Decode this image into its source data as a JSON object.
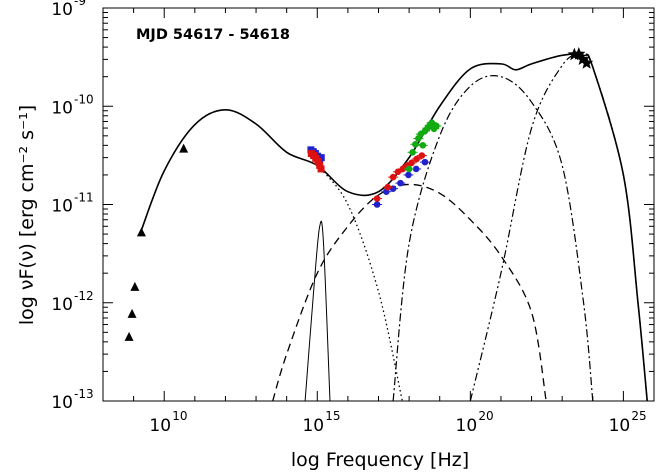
{
  "chart_data": {
    "type": "scatter",
    "annotation": "MJD 54617 - 54618",
    "xlabel": "log Frequency [Hz]",
    "ylabel": "log νF(ν) [erg cm⁻² s⁻¹]",
    "x_scale": "log",
    "y_scale": "log",
    "xlim": [
      100000000.0,
      1e+26
    ],
    "ylim": [
      1e-13,
      1e-09
    ],
    "x_tick_labels": [
      {
        "x": 10000000000.0,
        "base": "10",
        "exp": "10"
      },
      {
        "x": 1000000000000000.0,
        "base": "10",
        "exp": "15"
      },
      {
        "x": 1e+20,
        "base": "10",
        "exp": "20"
      },
      {
        "x": 1e+25,
        "base": "10",
        "exp": "25"
      }
    ],
    "y_tick_labels": [
      {
        "y": 1e-13,
        "base": "10",
        "exp": "-13"
      },
      {
        "y": 1e-12,
        "base": "10",
        "exp": "-12"
      },
      {
        "y": 1e-11,
        "base": "10",
        "exp": "-11"
      },
      {
        "y": 1e-10,
        "base": "10",
        "exp": "-10"
      },
      {
        "y": 1e-09,
        "base": "10",
        "exp": "-9"
      }
    ],
    "grid": false,
    "legend": "none",
    "series": [
      {
        "marker": "triangle",
        "color": "#000000",
        "points": [
          [
            710000000.0,
            4.5e-13
          ],
          [
            890000000.0,
            7.7e-13
          ],
          [
            1100000000.0,
            1.45e-12
          ],
          [
            1800000000.0,
            5.2e-12
          ],
          [
            43000000000.0,
            3.7e-11
          ]
        ]
      },
      {
        "marker": "star",
        "color": "#000000",
        "points": [
          [
            2.5e+23,
            3.35e-10
          ],
          [
            3.5e+23,
            3.4e-10
          ],
          [
            4.7e+23,
            3e-10
          ],
          [
            6.3e+23,
            2.75e-10
          ]
        ]
      },
      {
        "marker": "square",
        "color": "#2222cc",
        "points": [
          [
            620000000000000.0,
            3.6e-11
          ],
          [
            740000000000000.0,
            3.45e-11
          ],
          [
            870000000000000.0,
            3.3e-11
          ],
          [
            1020000000000000.0,
            3.1e-11
          ],
          [
            1200000000000000.0,
            2.9e-11
          ],
          [
            1350000000000000.0,
            3e-11
          ]
        ]
      },
      {
        "marker": "square",
        "color": "#dd1111",
        "points": [
          [
            640000000000000.0,
            3.3e-11
          ],
          [
            760000000000000.0,
            3.15e-11
          ],
          [
            890000000000000.0,
            2.95e-11
          ],
          [
            1050000000000000.0,
            2.75e-11
          ],
          [
            1200000000000000.0,
            2.5e-11
          ],
          [
            1330000000000000.0,
            2.3e-11
          ]
        ]
      },
      {
        "marker": "circle",
        "color": "#2222cc",
        "points": [
          [
            9e+16,
            1e-11
          ],
          [
            1.8e+17,
            1.35e-11
          ],
          [
            3e+17,
            1.45e-11
          ],
          [
            5.2e+17,
            1.65e-11
          ],
          [
            9.5e+17,
            2e-11
          ],
          [
            1.7e+18,
            2.3e-11
          ],
          [
            3.3e+18,
            2.7e-11
          ]
        ]
      },
      {
        "marker": "circle",
        "color": "#dd1111",
        "points": [
          [
            9e+16,
            1.15e-11
          ],
          [
            2e+17,
            1.5e-11
          ],
          [
            3e+17,
            1.9e-11
          ],
          [
            4.3e+17,
            2.15e-11
          ],
          [
            6.2e+17,
            2.3e-11
          ],
          [
            8.7e+17,
            2.5e-11
          ],
          [
            1.2e+18,
            2.65e-11
          ],
          [
            1.75e+18,
            2.9e-11
          ],
          [
            2.6e+18,
            3.15e-11
          ]
        ]
      },
      {
        "marker": "circle",
        "color": "#11aa11",
        "points": [
          [
            1e+18,
            2.3e-11
          ],
          [
            1.3e+18,
            3.4e-11
          ],
          [
            1.6e+18,
            4.1e-11
          ],
          [
            2e+18,
            4.7e-11
          ],
          [
            2.4e+18,
            5.2e-11
          ],
          [
            2.8e+18,
            4e-11
          ],
          [
            3.3e+18,
            5.6e-11
          ],
          [
            4e+18,
            6e-11
          ],
          [
            4.7e+18,
            6.4e-11
          ],
          [
            5.5e+18,
            6.8e-11
          ],
          [
            6.5e+18,
            5.9e-11
          ],
          [
            7.8e+18,
            6.3e-11
          ]
        ]
      }
    ],
    "model_curves": [
      {
        "style": "solid-thick",
        "points": [
          [
            1800000000.0,
            5.5e-12
          ],
          [
            10000000000.0,
            2.2e-11
          ],
          [
            100000000000.0,
            6.5e-11
          ],
          [
            1000000000000.0,
            9.2e-11
          ],
          [
            10000000000000.0,
            6.6e-11
          ],
          [
            100000000000000.0,
            3.4e-11
          ],
          [
            1000000000000000.0,
            2.5e-11
          ],
          [
            1e+16,
            1.35e-11
          ],
          [
            1e+17,
            1.35e-11
          ],
          [
            1e+18,
            3e-11
          ],
          [
            1e+19,
            1e-10
          ],
          [
            1e+20,
            2.4e-10
          ],
          [
            1e+21,
            2.7e-10
          ],
          [
            3e+21,
            2.35e-10
          ],
          [
            1e+22,
            2.7e-10
          ],
          [
            1e+23,
            3.3e-10
          ],
          [
            5e+23,
            3.3e-10
          ],
          [
            1e+24,
            2.5e-10
          ],
          [
            1e+25,
            2e-11
          ],
          [
            3e+25,
            1e-12
          ],
          [
            6e+25,
            1e-13
          ]
        ]
      },
      {
        "style": "dotted",
        "points": [
          [
            1000000000000000.0,
            2.5e-11
          ],
          [
            1e+16,
            1e-11
          ],
          [
            1e+17,
            1.3e-12
          ],
          [
            6e+17,
            1e-13
          ]
        ]
      },
      {
        "style": "solid-thin",
        "points": [
          [
            400000000000000.0,
            1e-13
          ],
          [
            800000000000000.0,
            1.6e-12
          ],
          [
            1200000000000000.0,
            6e-12
          ],
          [
            1600000000000000.0,
            4e-12
          ],
          [
            2600000000000000.0,
            1e-13
          ]
        ]
      },
      {
        "style": "dashed",
        "points": [
          [
            35000000000000.0,
            1e-13
          ],
          [
            100000000000000.0,
            3e-13
          ],
          [
            1000000000000000.0,
            2e-12
          ],
          [
            1e+16,
            6e-12
          ],
          [
            1e+17,
            1.25e-11
          ],
          [
            1e+18,
            1.6e-11
          ],
          [
            1e+19,
            1.3e-11
          ],
          [
            1e+20,
            7e-12
          ],
          [
            1e+21,
            3e-12
          ],
          [
            1e+22,
            8e-13
          ],
          [
            3e+22,
            1e-13
          ]
        ]
      },
      {
        "style": "dash-dot",
        "points": [
          [
            3e+17,
            1e-13
          ],
          [
            1e+18,
            4e-12
          ],
          [
            1e+19,
            5e-11
          ],
          [
            1e+20,
            1.6e-10
          ],
          [
            1e+21,
            2e-10
          ],
          [
            1e+22,
            1.1e-10
          ],
          [
            1e+23,
            2.5e-11
          ],
          [
            5e+23,
            1e-12
          ],
          [
            1e+24,
            1e-13
          ]
        ]
      },
      {
        "style": "dash-dot-dot",
        "points": [
          [
            1e+20,
            1e-13
          ],
          [
            1e+21,
            2e-12
          ],
          [
            1e+22,
            6e-11
          ],
          [
            1e+23,
            2.6e-10
          ],
          [
            4e+23,
            3.3e-10
          ],
          [
            1e+24,
            2.5e-10
          ],
          [
            1e+25,
            2e-11
          ],
          [
            3e+25,
            1e-12
          ],
          [
            6e+25,
            1e-13
          ]
        ]
      }
    ]
  }
}
